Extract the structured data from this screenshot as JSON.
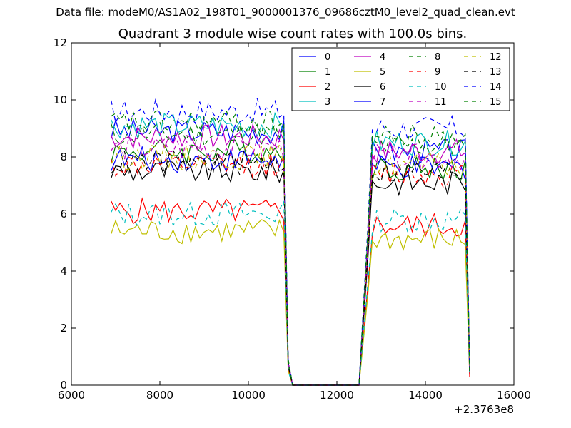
{
  "figure": {
    "suptitle": "Data file: modeM0/AS1A02_198T01_9000001376_09686cztM0_level2_quad_clean.evt"
  },
  "chart_data": {
    "type": "line",
    "title": "Quadrant 3 module wise count rates with 100.0s bins.",
    "xlabel": "",
    "ylabel": "",
    "xlim": [
      6000,
      16000
    ],
    "ylim": [
      0,
      12
    ],
    "xticks": [
      6000,
      8000,
      10000,
      12000,
      14000,
      16000
    ],
    "yticks": [
      0,
      2,
      4,
      6,
      8,
      10,
      12
    ],
    "x_offset_label": "+2.3763e8",
    "legend_position": "upper-right",
    "legend_columns": 4,
    "grid": false,
    "x_start": 6900,
    "x_step": 100,
    "gap_start": 11000,
    "gap_end": 12500,
    "segment1_start": 6900,
    "segment1_end": 10800,
    "segment2_start": 12800,
    "segment2_end": 14900,
    "final_x": 15000,
    "series": [
      {
        "name": "0",
        "color": "#0000ff",
        "dash": "solid",
        "level_a": 8.9,
        "level_b": 8.2,
        "drop_x": 10900,
        "drop_val": 0.8,
        "final": 0.5
      },
      {
        "name": "1",
        "color": "#008000",
        "dash": "solid",
        "level_a": 8.2,
        "level_b": 7.6,
        "drop_x": 10900,
        "drop_val": 0.8,
        "final": 0.5
      },
      {
        "name": "2",
        "color": "#ff0000",
        "dash": "solid",
        "level_a": 6.1,
        "level_b": 5.6,
        "drop_x": 10900,
        "drop_val": 0.6,
        "final": 0.3
      },
      {
        "name": "3",
        "color": "#00bfbf",
        "dash": "solid",
        "level_a": 9.1,
        "level_b": 8.5,
        "drop_x": 10900,
        "drop_val": 0.7,
        "final": 0.6
      },
      {
        "name": "4",
        "color": "#bf00bf",
        "dash": "solid",
        "level_a": 8.7,
        "level_b": 8.2,
        "drop_x": 10900,
        "drop_val": 0.8,
        "final": 0.5
      },
      {
        "name": "5",
        "color": "#bfbf00",
        "dash": "solid",
        "level_a": 5.4,
        "level_b": 5.1,
        "drop_x": 10900,
        "drop_val": 0.5,
        "final": 0.4
      },
      {
        "name": "6",
        "color": "#000000",
        "dash": "solid",
        "level_a": 7.5,
        "level_b": 7.1,
        "drop_x": 10900,
        "drop_val": 0.7,
        "final": 0.5
      },
      {
        "name": "7",
        "color": "#0000ff",
        "dash": "solid",
        "level_a": 7.9,
        "level_b": 7.6,
        "drop_x": 10900,
        "drop_val": 0.8,
        "final": 0.4
      },
      {
        "name": "8",
        "color": "#008000",
        "dash": "dashed",
        "level_a": 8.8,
        "level_b": 8.4,
        "drop_x": 10900,
        "drop_val": 0.8,
        "final": 0.5
      },
      {
        "name": "9",
        "color": "#ff0000",
        "dash": "dashed",
        "level_a": 7.7,
        "level_b": 7.4,
        "drop_x": 10900,
        "drop_val": 0.7,
        "final": 0.4
      },
      {
        "name": "10",
        "color": "#00bfbf",
        "dash": "dashed",
        "level_a": 6.0,
        "level_b": 5.8,
        "drop_x": 10900,
        "drop_val": 0.5,
        "final": 0.4
      },
      {
        "name": "11",
        "color": "#bf00bf",
        "dash": "dashed",
        "level_a": 8.3,
        "level_b": 8.0,
        "drop_x": 10900,
        "drop_val": 0.8,
        "final": 0.5
      },
      {
        "name": "12",
        "color": "#bfbf00",
        "dash": "dashed",
        "level_a": 8.0,
        "level_b": 7.7,
        "drop_x": 10900,
        "drop_val": 0.8,
        "final": 0.5
      },
      {
        "name": "13",
        "color": "#000000",
        "dash": "dashed",
        "level_a": 7.8,
        "level_b": 7.5,
        "drop_x": 10900,
        "drop_val": 0.7,
        "final": 0.5
      },
      {
        "name": "14",
        "color": "#0000ff",
        "dash": "dashed",
        "level_a": 9.6,
        "level_b": 9.0,
        "drop_x": 10900,
        "drop_val": 0.9,
        "final": 0.6
      },
      {
        "name": "15",
        "color": "#008000",
        "dash": "dashed",
        "level_a": 9.2,
        "level_b": 8.7,
        "drop_x": 10900,
        "drop_val": 0.9,
        "final": 0.5
      }
    ]
  }
}
